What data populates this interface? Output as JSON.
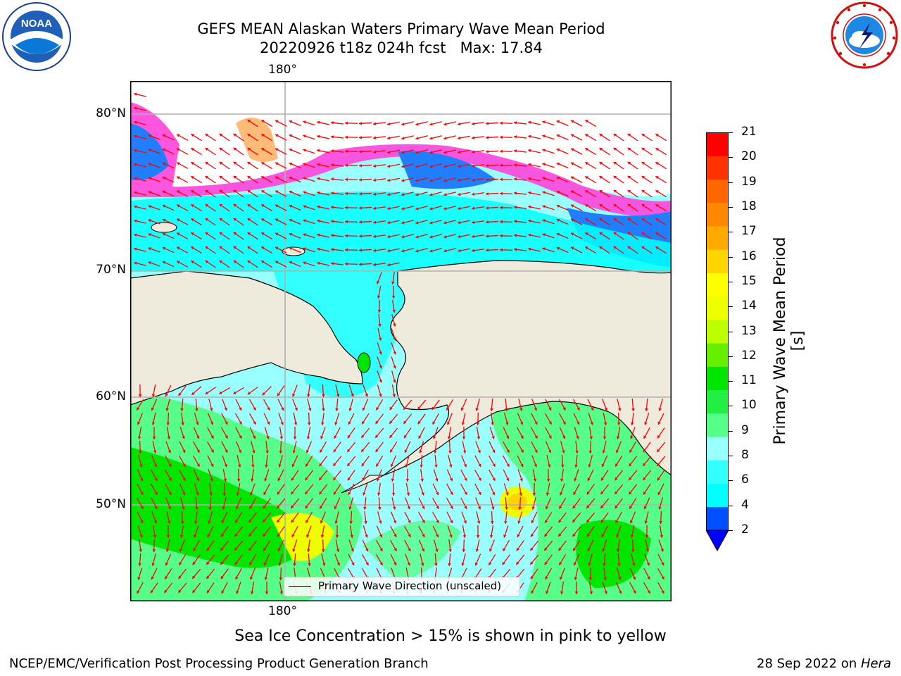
{
  "header": {
    "title_line1": "GEFS MEAN Alaskan Waters Primary Wave Mean Period",
    "title_line2": "20220926 t18z 024h fcst   Max: 17.84"
  },
  "logos": {
    "left": {
      "icon": "noaa-logo-icon",
      "text": "NOAA"
    },
    "right": {
      "icon": "nws-logo-icon"
    }
  },
  "map": {
    "lon_top": "180°",
    "lon_bottom": "180°",
    "lat_labels": [
      "80°N",
      "70°N",
      "60°N",
      "50°N"
    ],
    "legend": "Primary Wave Direction (unscaled)",
    "colors": {
      "land": "#efebdc",
      "arrow": "#ff0000",
      "gridline": "#b0b0b0",
      "ice_pink": "#ff44dd"
    }
  },
  "colorbar": {
    "label": "Primary Wave Mean Period [s]",
    "ticks": [
      "21",
      "20",
      "19",
      "18",
      "17",
      "16",
      "15",
      "14",
      "13",
      "12",
      "11",
      "10",
      "9",
      "8",
      "6",
      "4",
      "2"
    ],
    "levels": [
      2,
      4,
      6,
      8,
      9,
      10,
      11,
      12,
      13,
      14,
      15,
      16,
      17,
      18,
      19,
      20,
      21
    ],
    "colors": [
      "#0050ff",
      "#00ffff",
      "#33ffff",
      "#99ffff",
      "#55ff88",
      "#22ee44",
      "#00e600",
      "#66f000",
      "#bbff00",
      "#eeff00",
      "#ffff00",
      "#ffd400",
      "#ffaa00",
      "#ff8800",
      "#ff6600",
      "#ff3300",
      "#ff0000"
    ],
    "under_color": "#0000ff"
  },
  "footer": {
    "note": "Sea Ice Concentration > 15% is shown in pink to yellow",
    "left": "NCEP/EMC/Verification Post Processing Product Generation Branch",
    "right_date": "28 Sep 2022 on ",
    "right_host": "Hera"
  }
}
